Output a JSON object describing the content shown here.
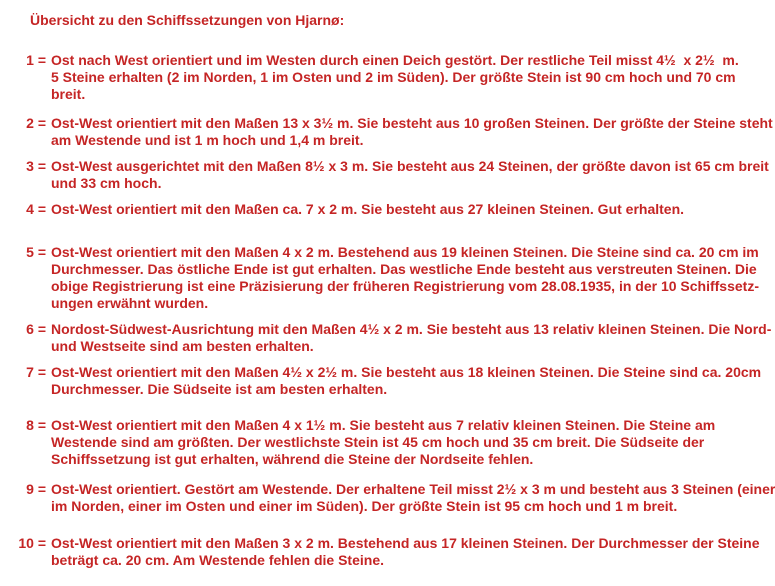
{
  "page": {
    "background_color": "#ffffff",
    "text_color": "#c52525"
  },
  "title": "Übersicht zu den Schiffssetzungen von Hjarnø:",
  "items": [
    {
      "label": "1 =",
      "text": "Ost nach West orientiert und im Westen durch einen Deich gestört. Der restliche Teil misst 4½  x 2½  m.\n5 Steine erhalten (2 im Norden, 1 im Osten und 2 im Süden). Der größte Stein ist 90 cm hoch und 70 cm\nbreit."
    },
    {
      "label": "2 =",
      "text": "Ost-West orientiert mit den Maßen 13 x 3½ m. Sie besteht aus 10 großen Steinen. Der größte der Steine steht\nam Westende und ist 1 m hoch und 1,4 m breit."
    },
    {
      "label": "3 =",
      "text": "Ost-West ausgerichtet mit den Maßen 8½ x 3 m. Sie besteht aus 24 Steinen, der größte davon ist 65 cm breit\nund 33 cm hoch."
    },
    {
      "label": "4 =",
      "text": "Ost-West orientiert mit den Maßen ca. 7 x 2 m. Sie besteht aus 27 kleinen Steinen. Gut erhalten."
    },
    {
      "label": "5 =",
      "text": "Ost-West orientiert mit den Maßen 4 x 2 m. Bestehend aus 19 kleinen Steinen. Die Steine sind ca. 20 cm im\nDurchmesser. Das östliche Ende ist gut erhalten. Das westliche Ende besteht aus verstreuten Steinen. Die\nobige Registrierung ist eine Präzisierung der früheren Registrierung vom 28.08.1935, in der 10 Schiffssetz-\nungen erwähnt wurden."
    },
    {
      "label": "6 =",
      "text": "Nordost-Südwest-Ausrichtung mit den Maßen 4½ x 2 m. Sie besteht aus 13 relativ kleinen Steinen. Die Nord-\nund Westseite sind am besten erhalten."
    },
    {
      "label": "7 =",
      "text": "Ost-West orientiert mit den Maßen 4½ x 2½ m. Sie besteht aus 18 kleinen Steinen. Die Steine sind ca. 20cm\nDurchmesser. Die Südseite ist am besten erhalten."
    },
    {
      "label": "8 =",
      "text": "Ost-West orientiert mit den Maßen 4 x 1½ m. Sie besteht aus 7 relativ kleinen Steinen. Die Steine am\nWestende sind am größten. Der westlichste Stein ist 45 cm hoch und 35 cm breit. Die Südseite der\nSchiffssetzung ist gut erhalten, während die Steine der Nordseite fehlen."
    },
    {
      "label": "9 =",
      "text": "Ost-West orientiert. Gestört am Westende. Der erhaltene Teil misst 2½ x 3 m und besteht aus 3 Steinen (einer\nim Norden, einer im Osten und einer im Süden). Der größte Stein ist 95 cm hoch und 1 m breit."
    },
    {
      "label": "10 =",
      "text": "Ost-West orientiert mit den Maßen 3 x 2 m. Bestehend aus 17 kleinen Steinen. Der Durchmesser der Steine\nbeträgt ca. 20 cm. Am Westende fehlen die Steine."
    }
  ]
}
